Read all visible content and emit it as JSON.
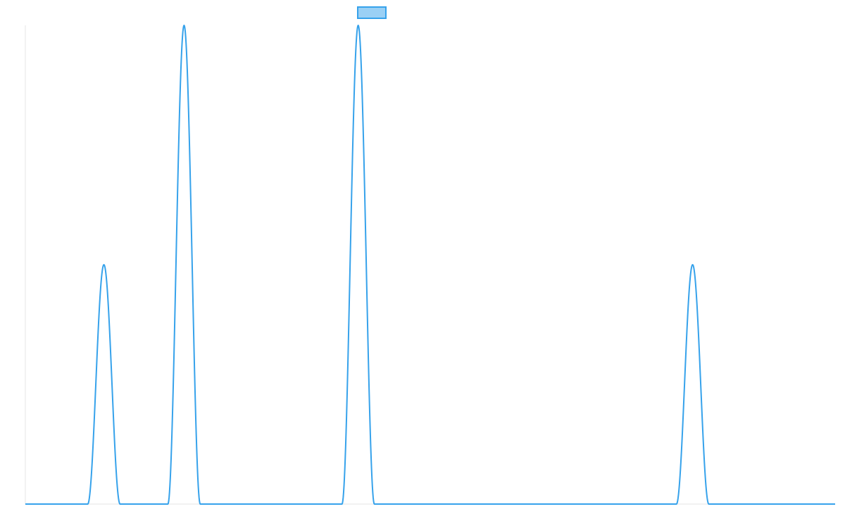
{
  "chart_data": {
    "type": "line",
    "title": "",
    "xlabel": "",
    "ylabel": "",
    "xlim": [
      0,
      1000
    ],
    "ylim": [
      0,
      1
    ],
    "grid": false,
    "legend": {
      "placement": "top-center",
      "entries": [
        {
          "name": "",
          "color": "#36a2eb",
          "fill": "#9ad0f5"
        }
      ]
    },
    "series": [
      {
        "name": "",
        "color": "#36a2eb",
        "peaks": [
          {
            "center": 97,
            "height": 0.5,
            "half_width": 20
          },
          {
            "center": 196,
            "height": 1.0,
            "half_width": 20
          },
          {
            "center": 411,
            "height": 1.0,
            "half_width": 20
          },
          {
            "center": 824,
            "height": 0.5,
            "half_width": 20
          }
        ]
      }
    ]
  }
}
